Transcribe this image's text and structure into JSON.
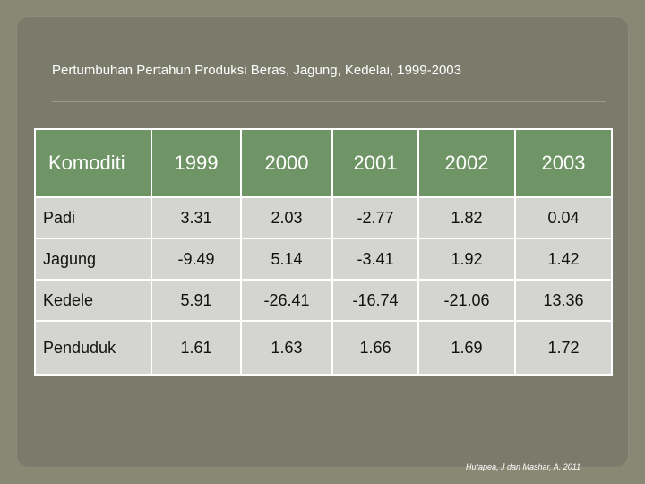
{
  "title": "Pertumbuhan Pertahun Produksi Beras, Jagung, Kedelai, 1999-2003",
  "table": {
    "headers": [
      "Komoditi",
      "1999",
      "2000",
      "2001",
      "2002",
      "2003"
    ],
    "rows": [
      [
        "Padi",
        "3.31",
        "2.03",
        "-2.77",
        "1.82",
        "0.04"
      ],
      [
        "Jagung",
        "-9.49",
        "5.14",
        "-3.41",
        "1.92",
        "1.42"
      ],
      [
        "Kedele",
        "5.91",
        "-26.41",
        "-16.74",
        "-21.06",
        "13.36"
      ],
      [
        "Penduduk",
        "1.61",
        "1.63",
        "1.66",
        "1.69",
        "1.72"
      ]
    ]
  },
  "citation": "Hutapea, J dan Mashar, A. 2011",
  "colors": {
    "background": "#888874",
    "header_fill": "#6f9566",
    "cell_fill": "#d4d4d0",
    "title_text": "#ffffff"
  }
}
